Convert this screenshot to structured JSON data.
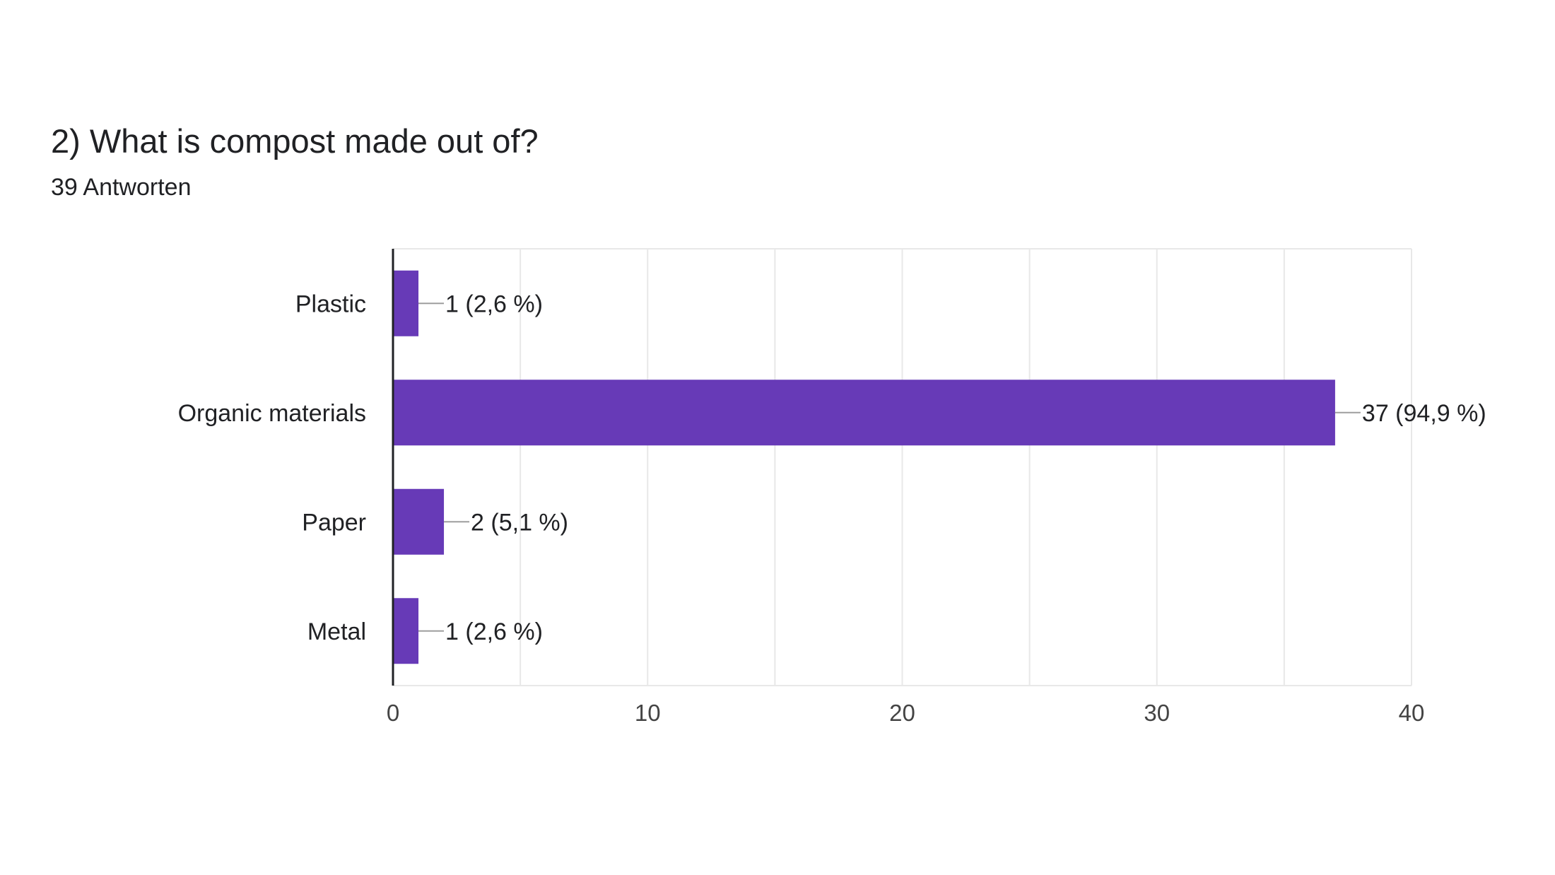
{
  "question": {
    "title": "2) What is compost made out of?",
    "responses": "39 Antworten"
  },
  "colors": {
    "bar": "#673ab7",
    "grid": "#e8e8e8",
    "axis": "#202124",
    "leader": "#9e9e9e",
    "text": "#202124",
    "tick_text": "#444444"
  },
  "chart_data": {
    "type": "bar",
    "orientation": "horizontal",
    "title": "",
    "xlabel": "",
    "ylabel": "",
    "categories": [
      "Plastic",
      "Organic materials",
      "Paper",
      "Metal"
    ],
    "values": [
      1,
      37,
      2,
      1
    ],
    "data_labels": [
      "1 (2,6 %)",
      "37 (94,9 %)",
      "2 (5,1 %)",
      "1 (2,6 %)"
    ],
    "xlim": [
      0,
      40
    ],
    "x_ticks": [
      0,
      10,
      20,
      30,
      40
    ],
    "x_tick_labels": [
      "0",
      "10",
      "20",
      "30",
      "40"
    ],
    "minor_gridlines": [
      5,
      15,
      25,
      35
    ],
    "grid": true,
    "legend": "none"
  }
}
